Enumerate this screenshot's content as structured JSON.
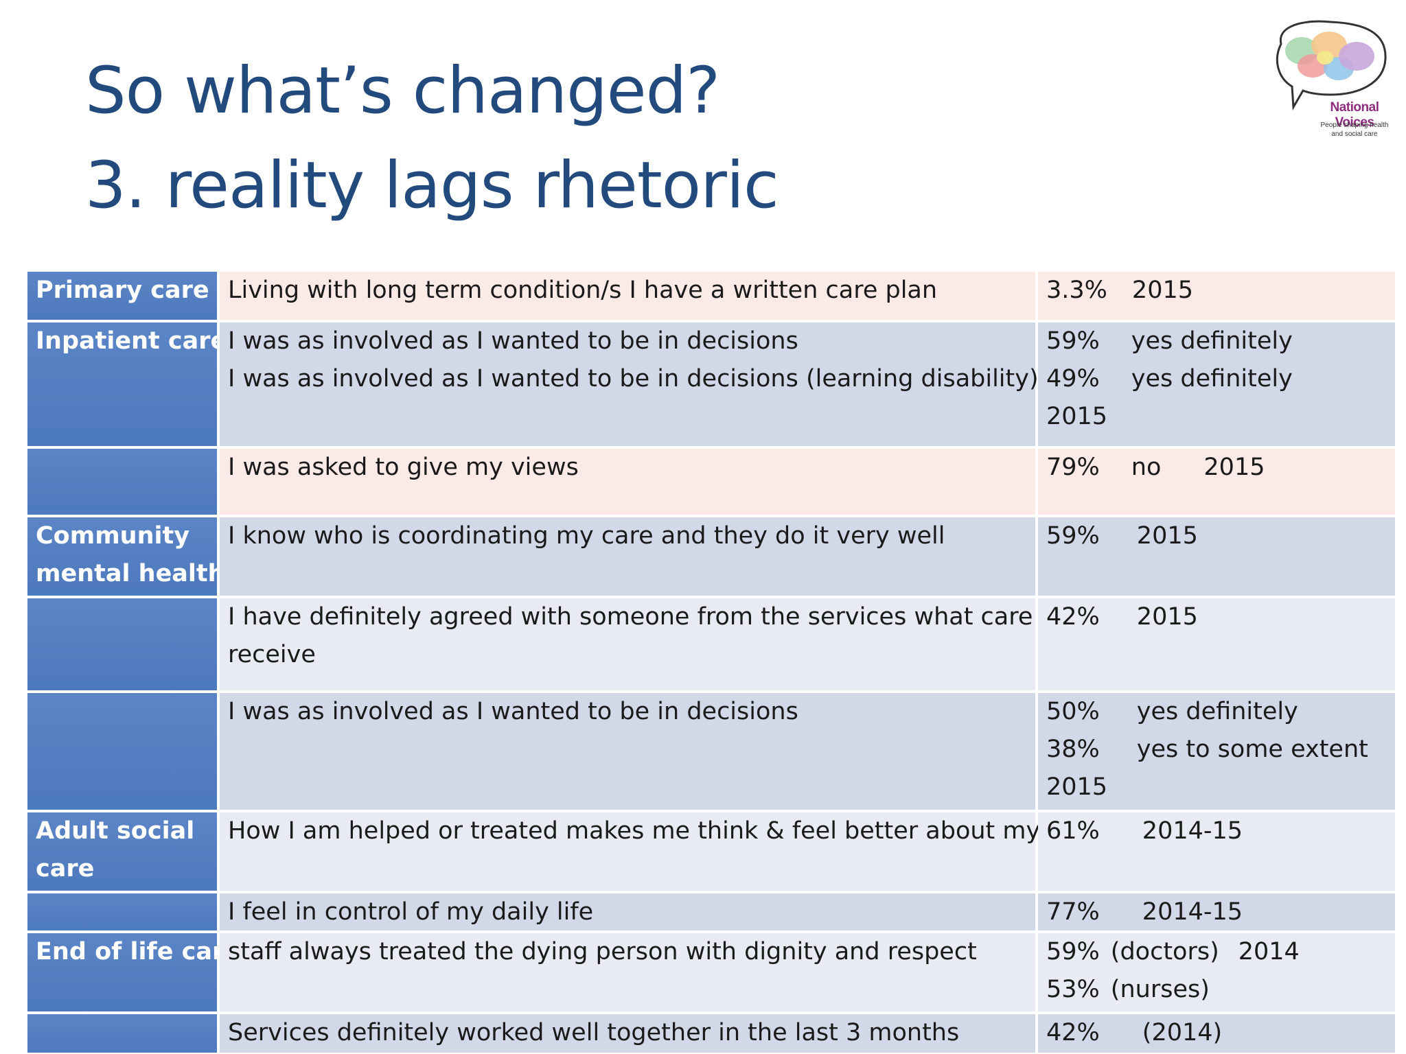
{
  "title": {
    "line1": "So what’s changed?",
    "line2": "3. reality lags rhetoric"
  },
  "logo": {
    "name": "National Voices",
    "tagline1": "People shaping health",
    "tagline2": "and social care"
  },
  "rows": [
    {
      "category": [
        "Primary care"
      ],
      "statements": [
        "Living with long term condition/s I have  a written care plan"
      ],
      "figures": [
        [
          "3.3%",
          "2015"
        ]
      ]
    },
    {
      "category": [
        "Inpatient care"
      ],
      "statements": [
        "I was as involved as I wanted to be in decisions",
        "I was as involved as I wanted to be in decisions (learning disability)"
      ],
      "figures": [
        [
          "59%",
          "yes definitely"
        ],
        [
          "49%",
          "yes definitely"
        ],
        [
          "2015"
        ]
      ]
    },
    {
      "category": [],
      "statements": [
        "I was asked to give my views"
      ],
      "figures": [
        [
          "79%",
          "no",
          "2015"
        ]
      ]
    },
    {
      "category": [
        "Community",
        "mental health"
      ],
      "statements": [
        "I know who is coordinating my care and they do it very well"
      ],
      "figures": [
        [
          "59%",
          "2015"
        ]
      ]
    },
    {
      "category": [],
      "statements": [
        "I have definitely agreed with someone from the services what care I will",
        "receive"
      ],
      "figures": [
        [
          "42%",
          "2015"
        ]
      ]
    },
    {
      "category": [],
      "statements": [
        "I was as involved as I wanted to be in decisions"
      ],
      "figures": [
        [
          "50%",
          "yes definitely"
        ],
        [
          "38%",
          "yes to some extent"
        ],
        [
          "2015"
        ]
      ]
    },
    {
      "category": [
        "Adult social",
        "care"
      ],
      "statements": [
        "How I am helped or treated makes me think & feel better about myself"
      ],
      "figures": [
        [
          "61%",
          "2014-15"
        ]
      ]
    },
    {
      "category": [],
      "statements": [
        "I feel in control of my daily life"
      ],
      "figures": [
        [
          "77%",
          "2014-15"
        ]
      ]
    },
    {
      "category": [
        "End of life care"
      ],
      "statements": [
        "staff always treated the dying person with dignity and respect"
      ],
      "figures": [
        [
          "59%",
          "(doctors)",
          "2014"
        ],
        [
          "53%",
          "(nurses)"
        ]
      ]
    },
    {
      "category": [],
      "statements": [
        "Services definitely worked well together in the last 3 months"
      ],
      "figures": [
        [
          "42%",
          "(2014)"
        ]
      ]
    }
  ],
  "colors": {
    "title": "#234a7d",
    "category_bg": "#4f7bbf",
    "row_pink": "#fbeae5",
    "row_blue": "#d1d9e9",
    "row_grey": "#e8ebf3"
  }
}
